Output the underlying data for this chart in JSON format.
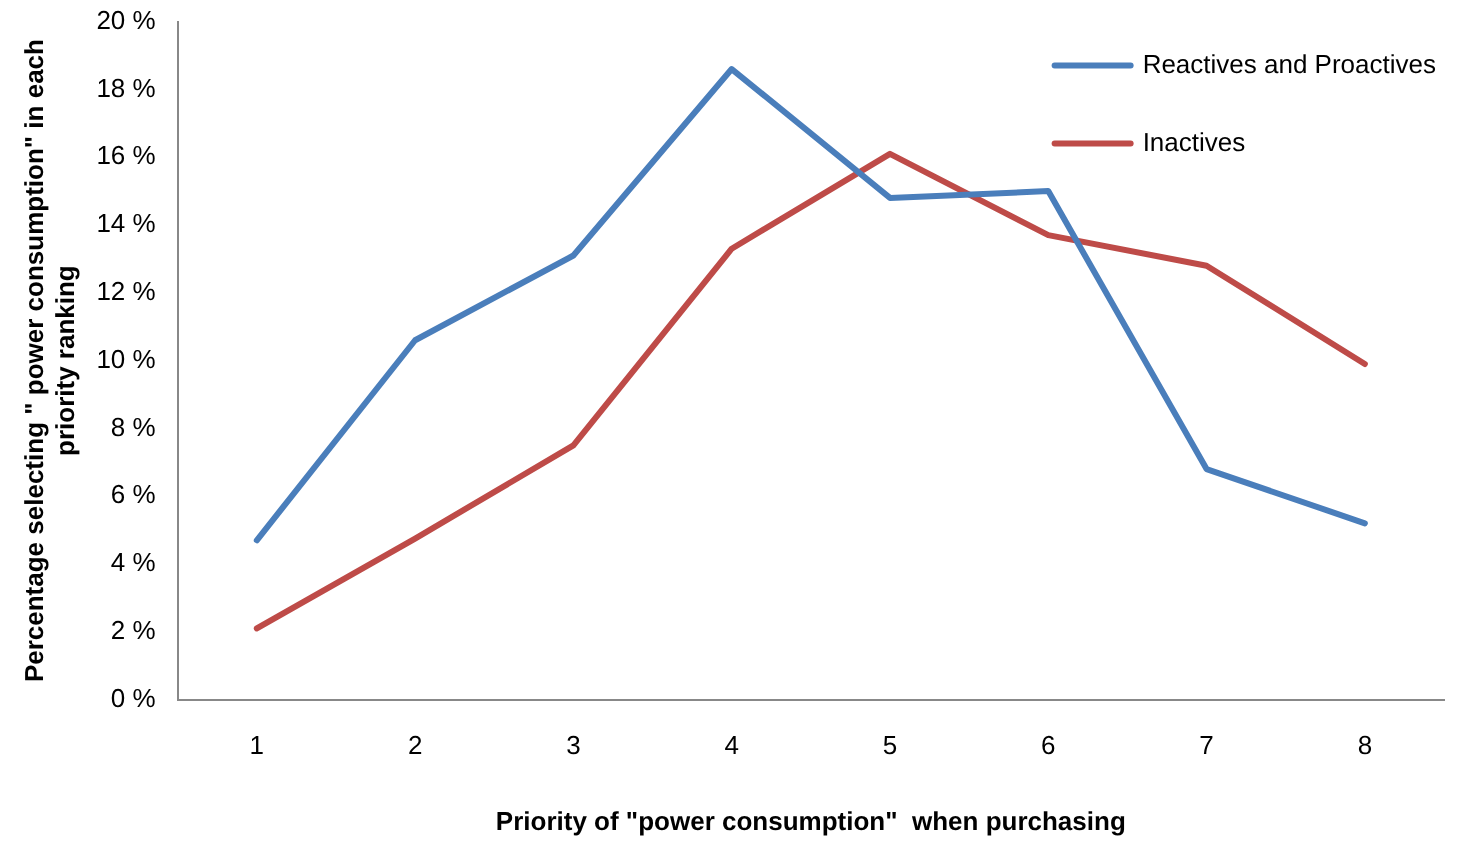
{
  "chart_data": {
    "type": "line",
    "xlabel": "Priority of \"power consumption\"  when purchasing",
    "ylabel": "Percentage selecting \" power consumption\" in each priority ranking",
    "categories": [
      "1",
      "2",
      "3",
      "4",
      "5",
      "6",
      "7",
      "8"
    ],
    "series": [
      {
        "name": "Reactives and Proactives",
        "color": "#4a7ebb",
        "values": [
          4.7,
          10.6,
          13.1,
          18.6,
          14.8,
          15.0,
          6.8,
          5.2
        ]
      },
      {
        "name": "Inactives",
        "color": "#be4b48",
        "values": [
          2.1,
          4.75,
          7.5,
          13.3,
          16.1,
          13.7,
          12.8,
          9.9
        ]
      }
    ],
    "ylim": [
      0,
      20
    ],
    "yticks": [
      {
        "value": 0,
        "label": "0 %"
      },
      {
        "value": 2,
        "label": "2 %"
      },
      {
        "value": 4,
        "label": "4 %"
      },
      {
        "value": 6,
        "label": "6 %"
      },
      {
        "value": 8,
        "label": "8 %"
      },
      {
        "value": 10,
        "label": "10 %"
      },
      {
        "value": 12,
        "label": "12 %"
      },
      {
        "value": 14,
        "label": "14 %"
      },
      {
        "value": 16,
        "label": "16 %"
      },
      {
        "value": 18,
        "label": "18 %"
      },
      {
        "value": 20,
        "label": "20 %"
      }
    ],
    "grid": false,
    "legend": "top right",
    "marker": "none",
    "line_style": "solid"
  }
}
